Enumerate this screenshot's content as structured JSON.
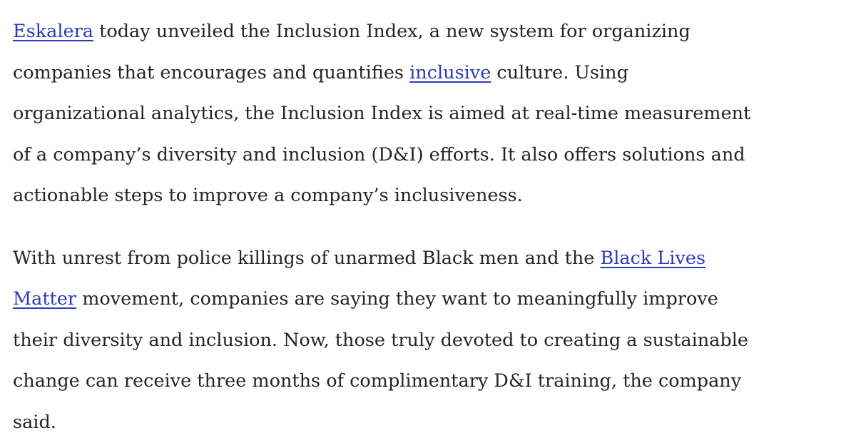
{
  "paragraphs": [
    {
      "lines": [
        [
          {
            "text": "Eskalera",
            "style": "link"
          },
          {
            "text": " today unveiled the Inclusion Index, a new system for organizing"
          }
        ],
        [
          {
            "text": "companies that encourages and quantifies "
          },
          {
            "text": "inclusive",
            "style": "link"
          },
          {
            "text": " culture. Using"
          }
        ],
        [
          {
            "text": "organizational analytics, the Inclusion Index is aimed at real-time measurement"
          }
        ],
        [
          {
            "text": "of a company’s diversity and inclusion (D&I) efforts. It also offers solutions and"
          }
        ],
        [
          {
            "text": "actionable steps to improve a company’s inclusiveness."
          }
        ]
      ]
    },
    {
      "lines": [
        [
          {
            "text": "With unrest from police killings of unarmed Black men and the "
          },
          {
            "text": "Black Lives",
            "style": "link"
          }
        ],
        [
          {
            "text": "Matter",
            "style": "link"
          },
          {
            "text": " movement, companies are saying they want to meaningfully improve"
          }
        ],
        [
          {
            "text": "their diversity and inclusion. Now, those truly devoted to creating a sustainable"
          }
        ],
        [
          {
            "text": "change can receive three months of complimentary D&I training, the company"
          }
        ],
        [
          {
            "text": "said."
          }
        ]
      ]
    }
  ]
}
